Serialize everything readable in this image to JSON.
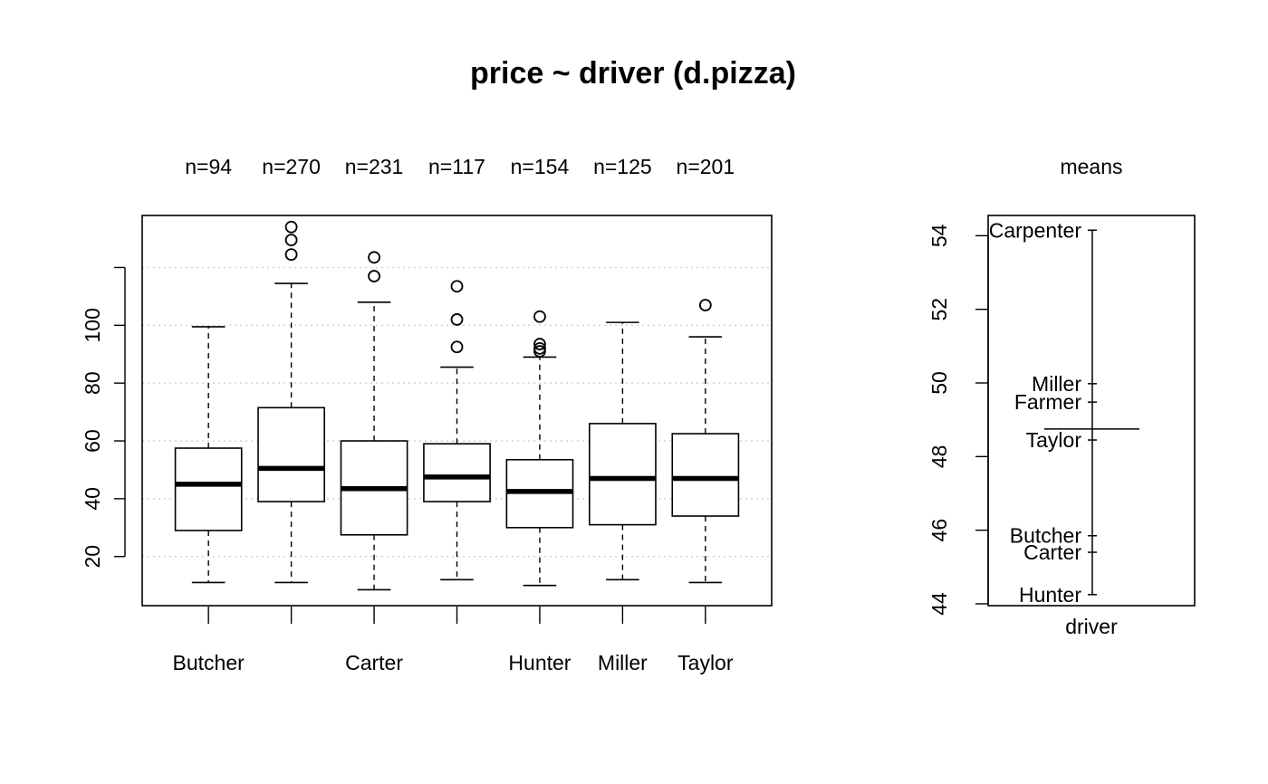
{
  "chart_data": [
    {
      "type": "boxplot",
      "title": "price ~ driver (d.pizza)",
      "xlabel": "",
      "ylabel": "",
      "ylim": [
        3,
        138
      ],
      "yticks": [
        20,
        40,
        60,
        80,
        100,
        120
      ],
      "yticklabels": [
        "20",
        "40",
        "60",
        "80",
        "100",
        ""
      ],
      "grid": true,
      "categories": [
        "Butcher",
        "Carpenter",
        "Carter",
        "Farmer",
        "Hunter",
        "Miller",
        "Taylor"
      ],
      "xticklabels": [
        "Butcher",
        "",
        "Carter",
        "",
        "Hunter",
        "Miller",
        "Taylor"
      ],
      "counts": [
        "n=94",
        "n=270",
        "n=231",
        "n=117",
        "n=154",
        "n=125",
        "n=201"
      ],
      "boxes": [
        {
          "lower_whisker": 11,
          "q1": 29,
          "median": 45,
          "q3": 57.5,
          "upper_whisker": 99.5,
          "outliers": []
        },
        {
          "lower_whisker": 11,
          "q1": 39,
          "median": 50.5,
          "q3": 71.5,
          "upper_whisker": 114.5,
          "outliers": [
            124.5,
            129.5,
            134
          ]
        },
        {
          "lower_whisker": 8.5,
          "q1": 27.5,
          "median": 43.5,
          "q3": 60,
          "upper_whisker": 108,
          "outliers": [
            117,
            123.5
          ]
        },
        {
          "lower_whisker": 12,
          "q1": 39,
          "median": 47.5,
          "q3": 59,
          "upper_whisker": 85.5,
          "outliers": [
            92.5,
            102,
            113.5
          ]
        },
        {
          "lower_whisker": 10,
          "q1": 30,
          "median": 42.5,
          "q3": 53.5,
          "upper_whisker": 89,
          "outliers": [
            91,
            92,
            93.5,
            103
          ]
        },
        {
          "lower_whisker": 12,
          "q1": 31,
          "median": 47,
          "q3": 66,
          "upper_whisker": 101,
          "outliers": []
        },
        {
          "lower_whisker": 11,
          "q1": 34,
          "median": 47,
          "q3": 62.5,
          "upper_whisker": 96,
          "outliers": [
            107
          ]
        }
      ]
    },
    {
      "type": "dotplot",
      "title": "means",
      "xlabel": "driver",
      "ylabel": "",
      "ylim": [
        43.95,
        54.55
      ],
      "yticks": [
        44,
        46,
        48,
        50,
        52,
        54
      ],
      "grand_mean": 48.75,
      "points": [
        {
          "label": "Carpenter",
          "value": 54.15
        },
        {
          "label": "Miller",
          "value": 49.98
        },
        {
          "label": "Farmer",
          "value": 49.48
        },
        {
          "label": "Taylor",
          "value": 48.45
        },
        {
          "label": "Butcher",
          "value": 45.85
        },
        {
          "label": "Carter",
          "value": 45.4
        },
        {
          "label": "Hunter",
          "value": 44.25
        }
      ]
    }
  ]
}
